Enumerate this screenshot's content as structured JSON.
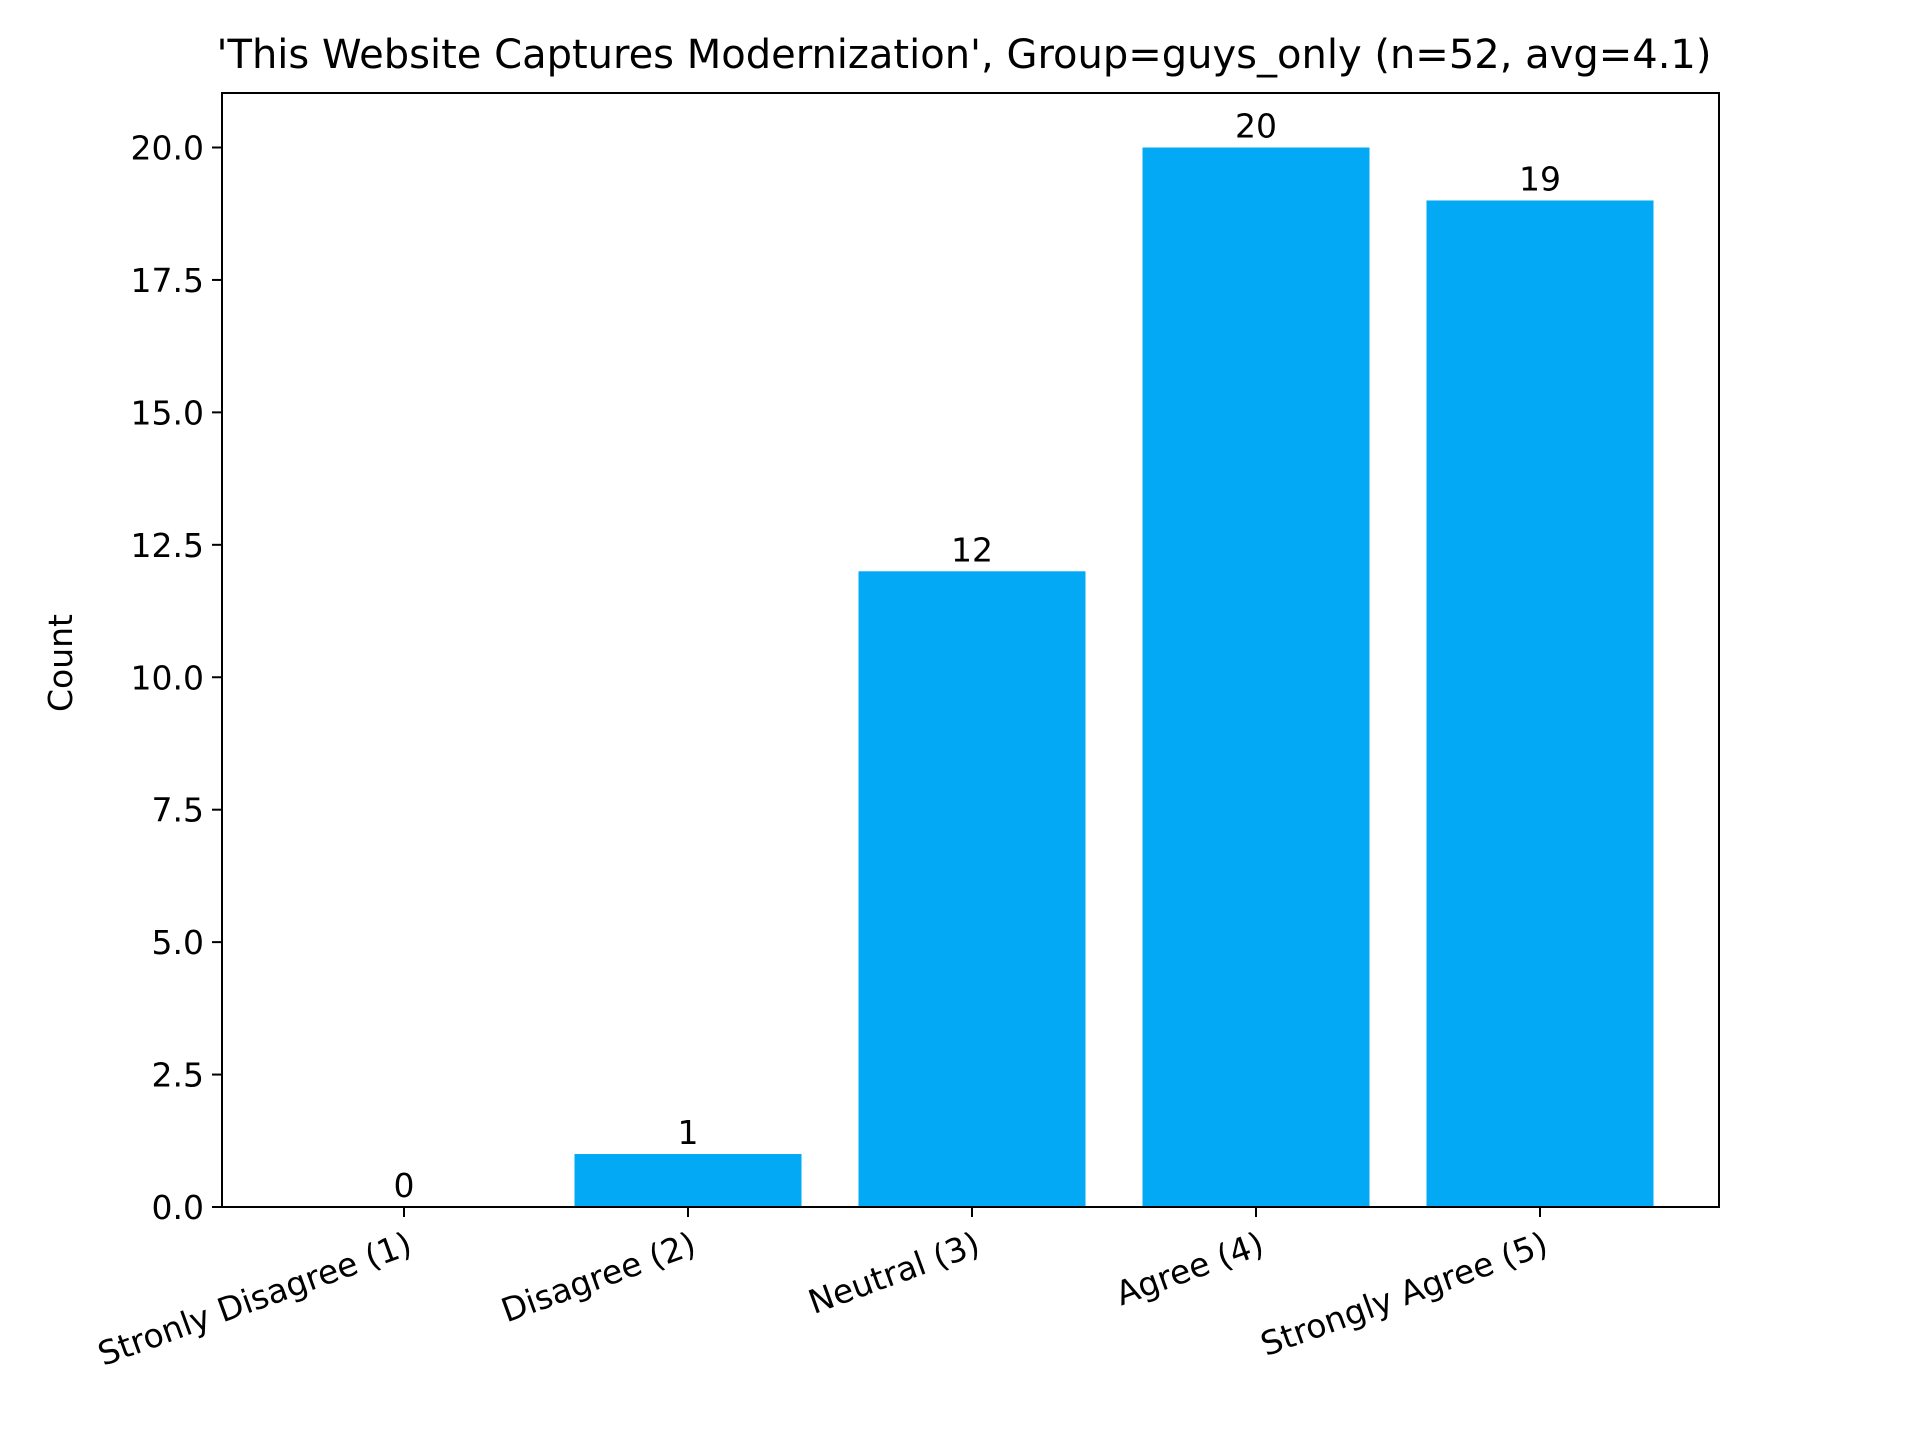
{
  "chart_data": {
    "type": "bar",
    "title": "'This Website Captures Modernization', Group=guys_only (n=52, avg=4.1)",
    "xlabel": "",
    "ylabel": "Count",
    "categories": [
      "Stronly Disagree (1)",
      "Disagree (2)",
      "Neutral (3)",
      "Agree (4)",
      "Strongly Agree (5)"
    ],
    "values": [
      0,
      1,
      12,
      20,
      19
    ],
    "data_labels": [
      "0",
      "1",
      "12",
      "20",
      "19"
    ],
    "ylim": [
      0,
      21
    ],
    "yticks": [
      0,
      2.5,
      5,
      7.5,
      10,
      12.5,
      15,
      17.5,
      20
    ],
    "ytick_labels": [
      "0.0",
      "2.5",
      "5.0",
      "7.5",
      "10.0",
      "12.5",
      "15.0",
      "17.5",
      "20.0"
    ],
    "xtick_rotation_deg": -20,
    "grid": false,
    "legend": "none",
    "bar_color": "#03a9f4"
  }
}
